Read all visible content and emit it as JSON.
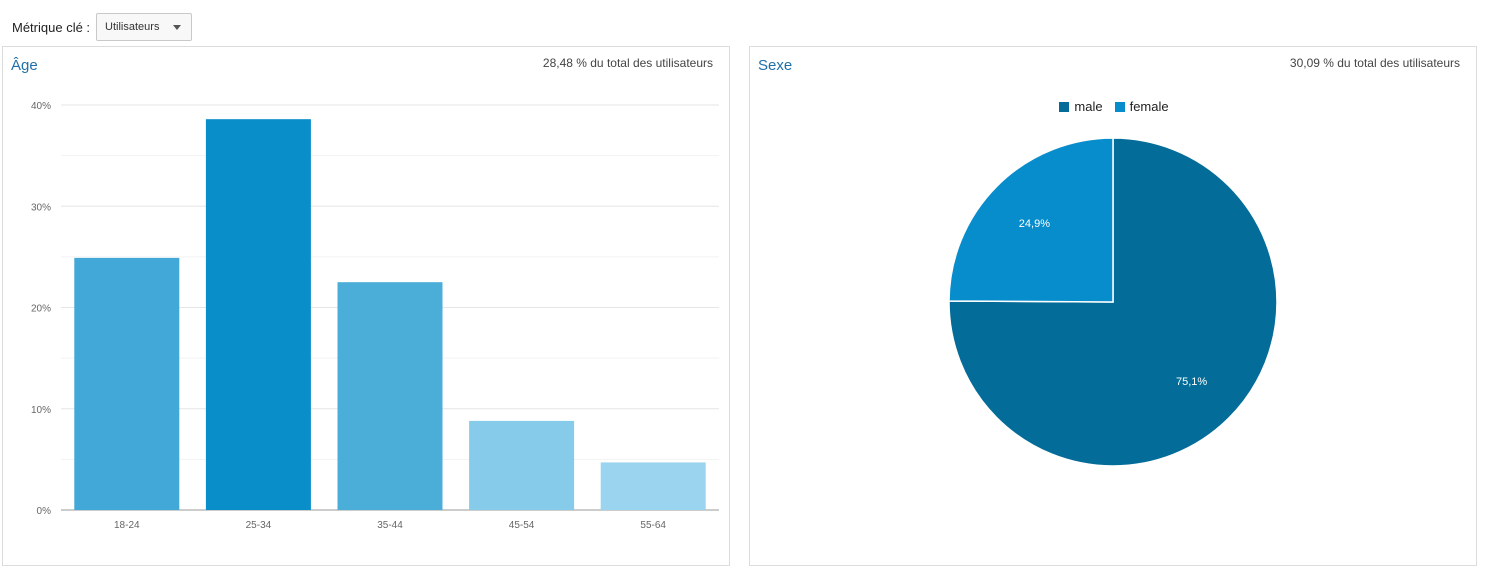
{
  "toolbar": {
    "metric_label": "Métrique clé :",
    "metric_value": "Utilisateurs"
  },
  "age_panel": {
    "title": "Âge",
    "subtitle": "28,48 % du total des utilisateurs"
  },
  "sex_panel": {
    "title": "Sexe",
    "subtitle": "30,09 % du total des utilisateurs"
  },
  "chart_data": [
    {
      "type": "bar",
      "title": "Âge",
      "categories": [
        "18-24",
        "25-34",
        "35-44",
        "45-54",
        "55-64"
      ],
      "values": [
        24.9,
        38.6,
        22.5,
        8.8,
        4.7
      ],
      "colors": [
        "#41a8d8",
        "#0a8ec9",
        "#4aaed9",
        "#86cbe9",
        "#9bd4ee"
      ],
      "ylim": [
        0,
        40
      ],
      "yticks": [
        0,
        10,
        20,
        30,
        40
      ],
      "ytick_labels": [
        "0%",
        "10%",
        "20%",
        "30%",
        "40%"
      ],
      "grid": true
    },
    {
      "type": "pie",
      "title": "Sexe",
      "labels": [
        "male",
        "female"
      ],
      "values": [
        75.1,
        24.9
      ],
      "value_labels": [
        "75,1%",
        "24,9%"
      ],
      "colors": [
        "#046c98",
        "#078ccc"
      ],
      "legend": "top-center"
    }
  ]
}
